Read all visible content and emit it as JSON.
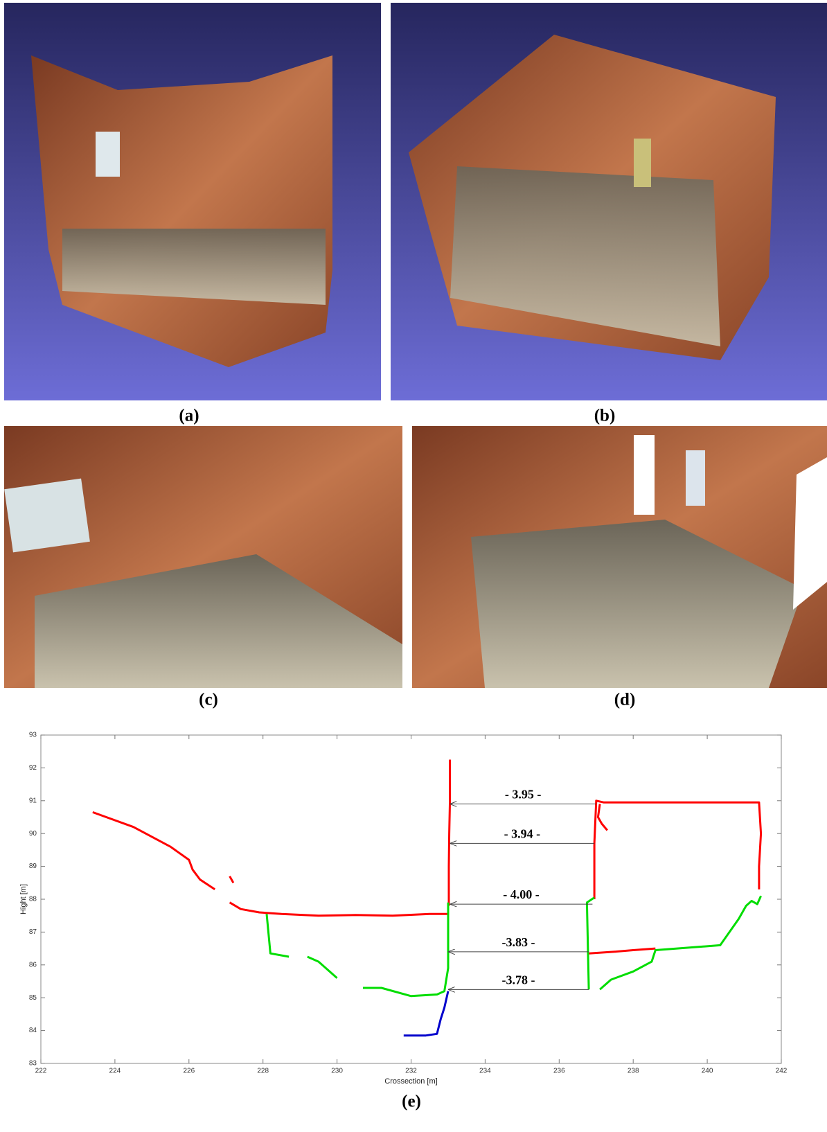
{
  "panel_labels": [
    "(a)",
    "(b)",
    "(c)",
    "(d)",
    "(e)"
  ],
  "chart_data": {
    "type": "line",
    "xlabel": "Crossection [m]",
    "ylabel": "Hight [m]",
    "xlim": [
      222,
      242
    ],
    "ylim": [
      83,
      93
    ],
    "xticks": [
      222,
      224,
      226,
      228,
      230,
      232,
      234,
      236,
      238,
      240,
      242
    ],
    "yticks": [
      83,
      84,
      85,
      86,
      87,
      88,
      89,
      90,
      91,
      92,
      93
    ],
    "grid": false,
    "series": [
      {
        "color": "#ff0000",
        "x": [
          223.4,
          224.5,
          225.5,
          226.0,
          226.1,
          226.3,
          226.7,
          null,
          227.1,
          227.2,
          null,
          227.1,
          227.4,
          227.9,
          228.5,
          229.5,
          230.5,
          231.5,
          232.5,
          233.0,
          null,
          233.02,
          233.02,
          233.03,
          233.05,
          233.05,
          null,
          236.95,
          236.95,
          237.0,
          237.2,
          239.0,
          241.4,
          241.45,
          241.4,
          241.4,
          null,
          237.1,
          237.05,
          237.15,
          237.3,
          null,
          236.8,
          237.5,
          238.0,
          238.6
        ],
        "values": [
          90.65,
          90.2,
          89.6,
          89.2,
          88.9,
          88.6,
          88.3,
          null,
          88.7,
          88.5,
          null,
          87.9,
          87.7,
          87.6,
          87.55,
          87.5,
          87.52,
          87.5,
          87.55,
          87.55,
          null,
          87.8,
          89.0,
          90.0,
          91.0,
          92.25,
          null,
          88.0,
          89.7,
          91.0,
          90.95,
          90.95,
          90.95,
          90.0,
          89.0,
          88.3,
          null,
          90.9,
          90.5,
          90.3,
          90.1,
          null,
          86.35,
          86.4,
          86.45,
          86.5
        ]
      },
      {
        "color": "#00dd00",
        "x": [
          228.1,
          228.2,
          228.7,
          null,
          229.2,
          229.5,
          230.0,
          null,
          230.7,
          231.2,
          232.0,
          232.7,
          232.9,
          233.0,
          233.0,
          null,
          236.95,
          236.75,
          236.8,
          null,
          237.1,
          237.4,
          238.0,
          238.5,
          238.6,
          240.35,
          240.85,
          241.05,
          241.2,
          241.35,
          241.45
        ],
        "values": [
          87.55,
          86.35,
          86.25,
          null,
          86.25,
          86.1,
          85.6,
          null,
          85.3,
          85.3,
          85.05,
          85.1,
          85.2,
          85.9,
          87.9,
          null,
          88.05,
          87.9,
          85.25,
          null,
          85.25,
          85.55,
          85.8,
          86.1,
          86.45,
          86.6,
          87.4,
          87.8,
          87.95,
          87.85,
          88.1
        ]
      },
      {
        "color": "#0000cc",
        "x": [
          231.8,
          232.4,
          232.7,
          232.8,
          232.9,
          233.0
        ],
        "values": [
          83.85,
          83.85,
          83.9,
          84.35,
          84.7,
          85.2
        ]
      }
    ],
    "annotations": [
      {
        "text": "- 3.95 -",
        "y": 90.9,
        "x": [
          233.05,
          237.0
        ]
      },
      {
        "text": "- 3.94 -",
        "y": 89.7,
        "x": [
          233.05,
          236.95
        ]
      },
      {
        "text": "- 4.00 -",
        "y": 87.85,
        "x": [
          233.05,
          236.9
        ]
      },
      {
        "text": "-3.83 -",
        "y": 86.4,
        "x": [
          233.0,
          236.8
        ]
      },
      {
        "text": "-3.78 -",
        "y": 85.25,
        "x": [
          233.0,
          236.8
        ]
      }
    ]
  }
}
